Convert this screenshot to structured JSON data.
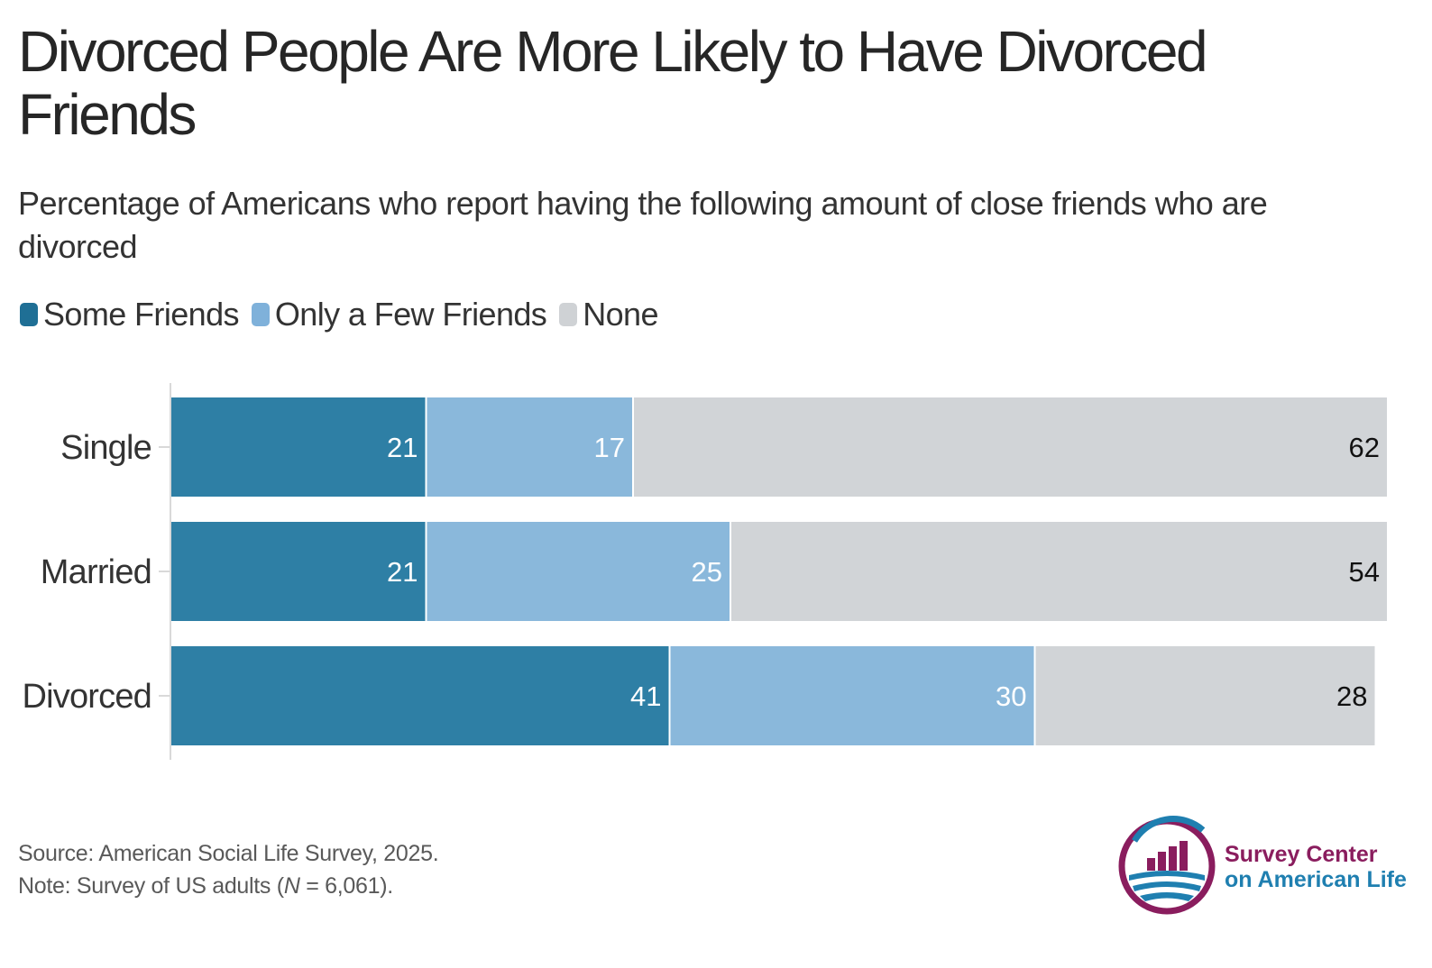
{
  "title": "Divorced People Are More Likely to Have Divorced Friends",
  "subtitle": "Percentage of Americans who report having the following amount of close friends who are divorced",
  "legend": [
    {
      "label": "Some Friends",
      "color": "#2e7fa5"
    },
    {
      "label": "Only a Few Friends",
      "color": "#8ab8db"
    },
    {
      "label": "None",
      "color": "#d1d4d7"
    }
  ],
  "chart_data": {
    "type": "bar",
    "orientation": "horizontal",
    "stacked": true,
    "categories": [
      "Single",
      "Married",
      "Divorced"
    ],
    "series": [
      {
        "name": "Some Friends",
        "values": [
          21,
          21,
          41
        ],
        "color": "#2e7fa5",
        "label_color": "#ffffff"
      },
      {
        "name": "Only a Few Friends",
        "values": [
          17,
          25,
          30
        ],
        "color": "#8ab8db",
        "label_color": "#ffffff"
      },
      {
        "name": "None",
        "values": [
          62,
          54,
          28
        ],
        "color": "#d1d4d7",
        "label_color": "#111111"
      }
    ],
    "xlim": [
      0,
      100
    ],
    "grid": false,
    "legend_position": "top-left"
  },
  "footer": {
    "source": "Source: American Social Life Survey, 2025.",
    "note_prefix": "Note: Survey of US adults (",
    "note_n": "N",
    "note_suffix": " = 6,061)."
  },
  "logo": {
    "line1": "Survey Center",
    "line2": "on American Life",
    "ring_color": "#8a1d5e",
    "accent_color": "#1f7fb0"
  }
}
